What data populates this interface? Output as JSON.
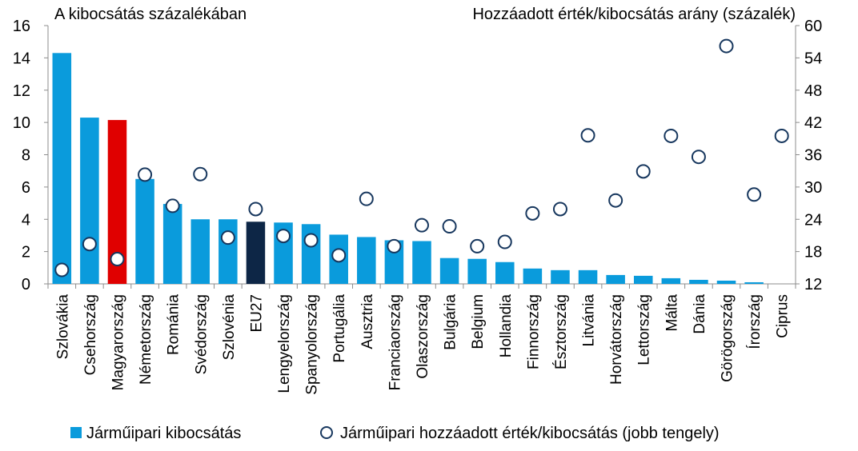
{
  "chart_data": {
    "type": "bar",
    "left_axis_title": "A kibocsátás százalékában",
    "right_axis_title": "Hozzáadott érték/kibocsátás arány (százalék)",
    "ylim_left": [
      0,
      16
    ],
    "yticks_left": [
      "0",
      "2",
      "4",
      "6",
      "8",
      "10",
      "12",
      "14",
      "16"
    ],
    "ylim_right": [
      12,
      60
    ],
    "yticks_right": [
      "12",
      "18",
      "24",
      "30",
      "36",
      "42",
      "48",
      "54",
      "60"
    ],
    "categories": [
      "Szlovákia",
      "Csehország",
      "Magyarország",
      "Németország",
      "Románia",
      "Svédország",
      "Szlovénia",
      "EU27",
      "Lengyelország",
      "Spanyolország",
      "Portugália",
      "Ausztria",
      "Franciaország",
      "Olaszország",
      "Bulgária",
      "Belgium",
      "Hollandia",
      "Finnország",
      "Észtország",
      "Litvánia",
      "Horvátország",
      "Lettország",
      "Málta",
      "Dánia",
      "Görögország",
      "Írország",
      "Ciprus"
    ],
    "series": [
      {
        "name": "Járműipari kibocsátás",
        "kind": "bar",
        "axis": "left",
        "color": "#0A9BDC",
        "values": [
          14.3,
          10.3,
          10.15,
          6.5,
          4.95,
          4.0,
          4.0,
          3.85,
          3.8,
          3.7,
          3.05,
          2.9,
          2.7,
          2.65,
          1.6,
          1.55,
          1.35,
          0.95,
          0.85,
          0.85,
          0.55,
          0.5,
          0.35,
          0.25,
          0.2,
          0.1,
          0.0
        ]
      },
      {
        "name": "Járműipari hozzáadott érték/kibocsátás (jobb tengely)",
        "kind": "marker",
        "axis": "right",
        "marker_edge": "#17375E",
        "marker_fill": "#ffffff",
        "values": [
          14.6,
          19.4,
          16.6,
          32.3,
          26.5,
          32.4,
          20.6,
          25.9,
          20.9,
          20.1,
          17.3,
          27.8,
          19.0,
          22.9,
          22.7,
          19.0,
          19.8,
          25.1,
          25.9,
          39.6,
          27.5,
          32.9,
          39.5,
          35.6,
          56.2,
          28.6,
          39.5
        ]
      }
    ],
    "highlight_colors": {
      "Magyarország": "#E00000",
      "EU27": "#0D2646"
    },
    "grid": false,
    "legend_position": "bottom"
  }
}
